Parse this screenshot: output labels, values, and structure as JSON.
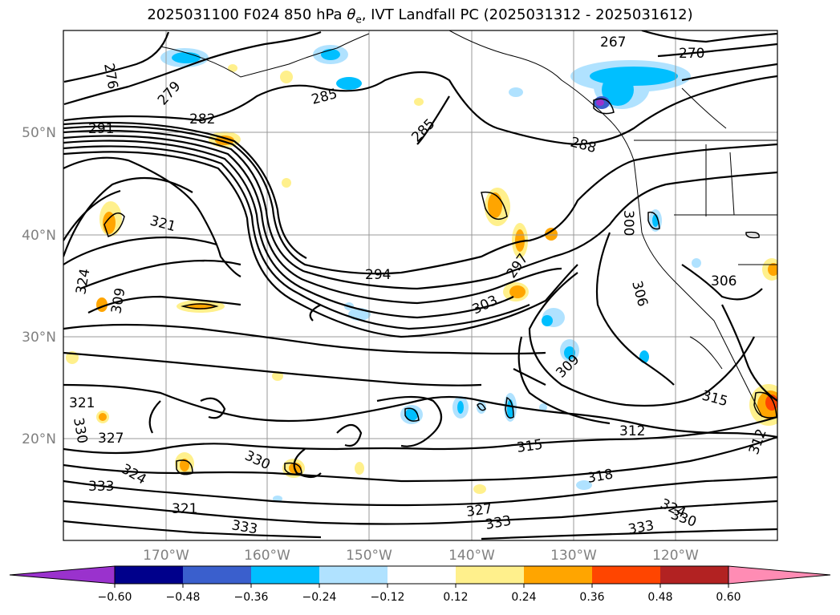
{
  "title": {
    "prefix": "2025031100 F024 850 hPa ",
    "theta": "θ",
    "theta_sub": "e",
    "suffix": ", IVT Landfall PC (2025031312 - 2025031612)"
  },
  "map": {
    "lon_ticks": [
      "170°W",
      "160°W",
      "150°W",
      "140°W",
      "130°W",
      "120°W"
    ],
    "lat_ticks": [
      "50°N",
      "40°N",
      "30°N",
      "20°N"
    ]
  },
  "contour_labels": [
    "267",
    "270",
    "276",
    "279",
    "282",
    "285",
    "288",
    "291",
    "294",
    "297",
    "300",
    "303",
    "306",
    "309",
    "312",
    "315",
    "318",
    "321",
    "324",
    "327",
    "330",
    "333"
  ],
  "colorbar": {
    "colors": [
      "#9a32cd",
      "#00008b",
      "#3a5fcd",
      "#00bfff",
      "#b0e2ff",
      "#ffffff",
      "#fff08c",
      "#ffa500",
      "#ff4500",
      "#b22222",
      "#ff8cb4"
    ],
    "tick_labels": [
      "−0.60",
      "−0.48",
      "−0.36",
      "−0.24",
      "−0.12",
      "0.12",
      "0.24",
      "0.36",
      "0.48",
      "0.60"
    ]
  }
}
